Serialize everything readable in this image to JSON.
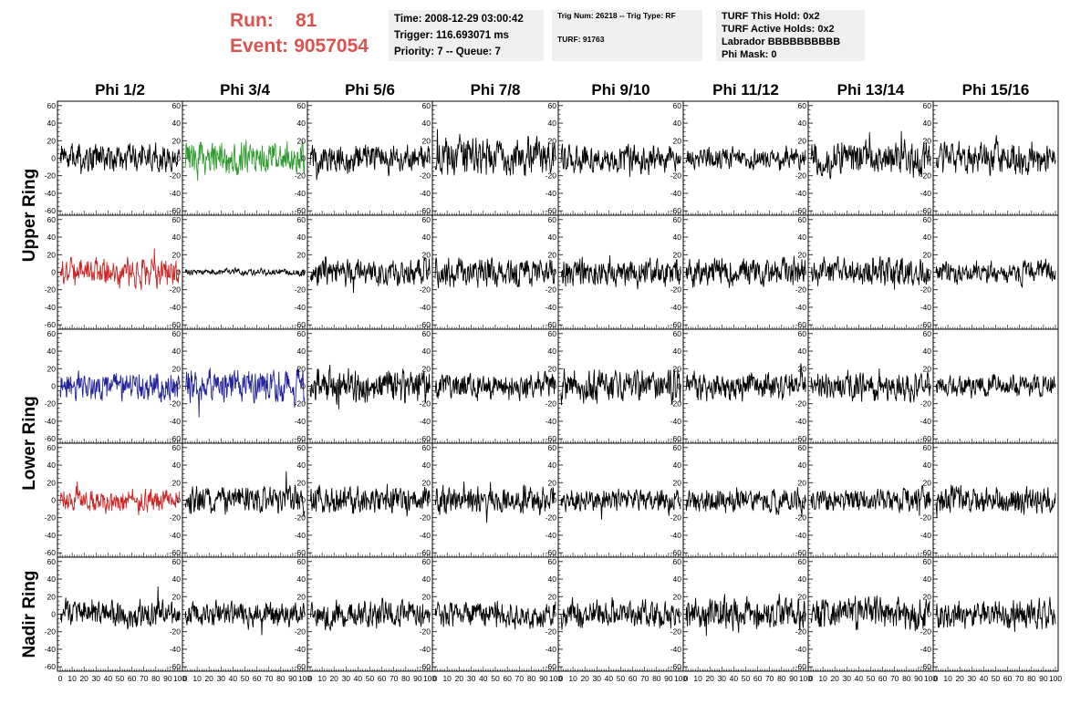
{
  "header": {
    "run_label": "Run:",
    "run_value": "81",
    "event_label": "Event:",
    "event_value": "9057054",
    "accent_color": "#d9534f"
  },
  "info": {
    "time": "Time: 2008-12-29 03:00:42",
    "trigger": "Trigger: 116.693071 ms",
    "priority": "Priority: 7 -- Queue: 7",
    "trig_num": "Trig Num: 26218 -- Trig Type: RF",
    "turf": "TURF: 91763",
    "turf_this_hold": "TURF This Hold: 0x2",
    "turf_active_holds": "TURF Active Holds: 0x2",
    "labrador": "Labrador BBBBBBBBBB",
    "phi_mask": "Phi Mask: 0"
  },
  "chart_data": {
    "type": "line",
    "layout": "grid of waveform panels, 5 rows x 8 columns",
    "column_labels": [
      "Phi 1/2",
      "Phi 3/4",
      "Phi 5/6",
      "Phi 7/8",
      "Phi 9/10",
      "Phi 11/12",
      "Phi 13/14",
      "Phi 15/16"
    ],
    "ring_labels": [
      "Upper Ring",
      "Lower Ring",
      "Nadir Ring"
    ],
    "ring_label_row_spans": [
      [
        0,
        1
      ],
      [
        2,
        3
      ],
      [
        4,
        4
      ]
    ],
    "ylim": [
      -65,
      65
    ],
    "yticks": [
      -60,
      -40,
      -20,
      0,
      20,
      40,
      60
    ],
    "xlim": [
      0,
      100
    ],
    "xticks": [
      0,
      10,
      20,
      30,
      40,
      50,
      60,
      70,
      80,
      90,
      100
    ],
    "xtick_labels": [
      "0",
      "10",
      "20",
      "30",
      "40",
      "50",
      "60",
      "70",
      "80",
      "90",
      "100"
    ],
    "x_labels_row": 4,
    "grid": false,
    "samples_per_trace": 260,
    "default_trace_color": "#000000",
    "highlighted_panels": [
      {
        "row": 0,
        "col": 1,
        "color": "#2e9b2e"
      },
      {
        "row": 1,
        "col": 0,
        "color": "#cc2222"
      },
      {
        "row": 2,
        "col": 0,
        "color": "#22229a"
      },
      {
        "row": 2,
        "col": 1,
        "color": "#22229a"
      },
      {
        "row": 3,
        "col": 0,
        "color": "#cc2222"
      }
    ],
    "approx_peak_amplitudes": [
      [
        25,
        30,
        25,
        35,
        25,
        18,
        30,
        28
      ],
      [
        25,
        6,
        25,
        25,
        25,
        25,
        25,
        20
      ],
      [
        25,
        30,
        30,
        25,
        30,
        25,
        25,
        20
      ],
      [
        20,
        25,
        25,
        25,
        20,
        22,
        22,
        25
      ],
      [
        25,
        22,
        25,
        25,
        25,
        30,
        28,
        25
      ]
    ]
  }
}
